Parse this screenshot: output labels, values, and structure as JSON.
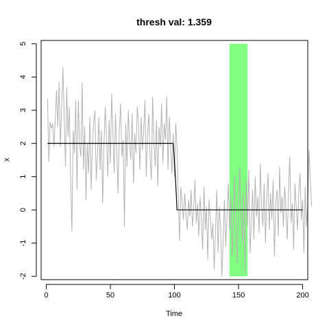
{
  "chart_data": {
    "type": "line",
    "title": "thresh val: 1.359",
    "xlabel": "Time",
    "ylabel": "x",
    "xlim": [
      -4,
      204
    ],
    "ylim": [
      -2.1,
      5.1
    ],
    "x_ticks": [
      0,
      50,
      100,
      150,
      200
    ],
    "y_ticks": [
      -2,
      -1,
      0,
      1,
      2,
      3,
      4,
      5
    ],
    "grid": false,
    "legend": "none",
    "colors": {
      "series": "#b3b3b3",
      "fit": "#000000",
      "highlight": "#80ff80",
      "frame": "#000000"
    },
    "highlight_region": {
      "x": [
        143,
        157
      ],
      "y": [
        -2,
        5
      ]
    },
    "series": [
      {
        "values": [
          3.35,
          1.45,
          2.65,
          2.45,
          2.6,
          1.9,
          2.7,
          3.6,
          2.5,
          3.85,
          1.9,
          3.1,
          4.3,
          2.8,
          1.3,
          3.7,
          2.2,
          3.1,
          1.0,
          -0.65,
          2.4,
          1.7,
          3.3,
          0.6,
          3.3,
          2.0,
          1.6,
          3.85,
          1.2,
          2.5,
          0.3,
          2.0,
          1.1,
          2.8,
          0.6,
          1.9,
          2.6,
          3.0,
          0.9,
          1.6,
          2.8,
          1.2,
          2.4,
          0.2,
          1.9,
          3.1,
          2.2,
          1.0,
          2.7,
          1.4,
          3.5,
          2.3,
          1.1,
          2.9,
          1.8,
          0.5,
          2.4,
          3.2,
          1.6,
          2.1,
          -0.5,
          2.6,
          1.3,
          3.0,
          2.0,
          1.5,
          2.9,
          0.8,
          2.3,
          1.7,
          3.1,
          2.6,
          1.2,
          2.8,
          1.8,
          2.4,
          3.3,
          1.0,
          2.2,
          2.9,
          1.6,
          0.9,
          3.4,
          2.0,
          1.3,
          2.7,
          0.7,
          2.5,
          1.9,
          3.2,
          1.4,
          2.6,
          2.1,
          3.4,
          1.2,
          2.8,
          2.0,
          1.1,
          2.3,
          1.0,
          2.6,
          1.9,
          0.4,
          -0.95,
          0.7,
          0.2,
          -0.3,
          0.5,
          -0.1,
          -0.6,
          0.3,
          -0.2,
          0.6,
          -0.5,
          0.0,
          0.9,
          -0.4,
          0.2,
          -0.8,
          0.4,
          -0.3,
          -1.2,
          0.7,
          -0.6,
          0.1,
          -1.5,
          0.3,
          -0.2,
          -0.9,
          -0.4,
          -1.8,
          -0.7,
          0.6,
          -1.3,
          0.1,
          -0.5,
          -2.0,
          -0.9,
          0.3,
          -1.1,
          -0.2,
          0.8,
          -0.6,
          0.4,
          -1.4,
          -0.3,
          1.0,
          -0.8,
          -1.6,
          0.2,
          1.3,
          -0.2,
          -1.0,
          0.5,
          -1.9,
          0.9,
          -0.5,
          1.2,
          -1.3,
          -0.4,
          0.6,
          -0.9,
          1.0,
          -0.2,
          0.4,
          -0.7,
          1.4,
          0.1,
          -0.5,
          0.8,
          -1.0,
          0.3,
          1.1,
          -0.6,
          0.5,
          -0.3,
          0.9,
          -1.4,
          0.2,
          0.6,
          -0.8,
          1.3,
          -0.1,
          0.4,
          -0.5,
          0.7,
          0.0,
          -0.9,
          0.6,
          1.6,
          -0.4,
          0.2,
          -1.2,
          0.8,
          0.1,
          -0.6,
          0.5,
          1.1,
          -0.3,
          0.3,
          -1.3,
          0.7,
          -0.5,
          0.2,
          1.8,
          0.9,
          0.1
        ]
      },
      {
        "x": [
          1,
          99,
          100,
          101,
          102,
          200
        ],
        "values": [
          2.0,
          2.0,
          1.5,
          0.8,
          0.0,
          0.0
        ]
      }
    ]
  }
}
